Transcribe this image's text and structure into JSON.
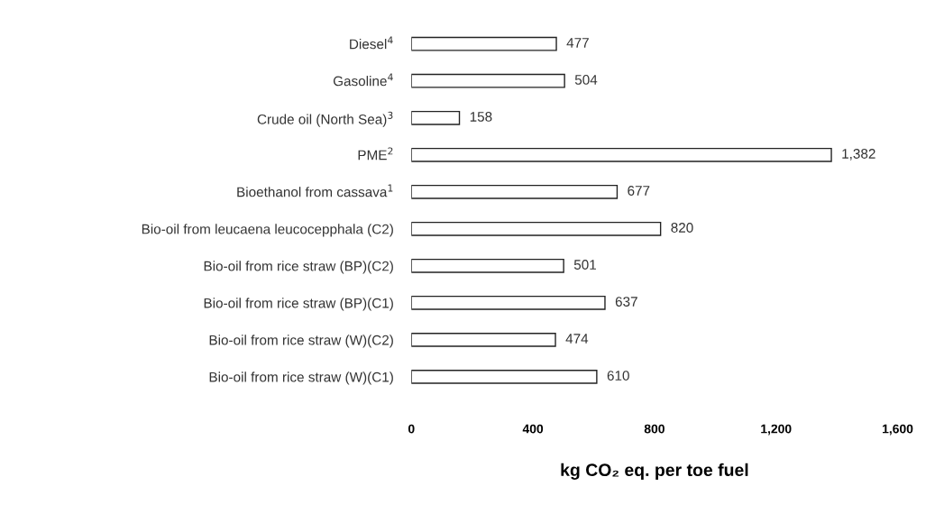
{
  "chart_data": {
    "type": "bar",
    "orientation": "horizontal",
    "categories": [
      "Diesel$^{4}$",
      "Gasoline$^{4}$",
      "Crude oil (North Sea)$^{3}$",
      "PME$^{2}$",
      "Bioethanol from cassava$^{1}$",
      "Bio-oil from leucaena leucocepphala (C2)",
      "Bio-oil from rice straw (BP)(C2)",
      "Bio-oil from rice straw (BP)(C1)",
      "Bio-oil from rice straw (W)(C2)",
      "Bio-oil from rice straw (W)(C1)"
    ],
    "values": [
      477,
      504,
      158,
      1382,
      677,
      820,
      501,
      637,
      474,
      610
    ],
    "value_labels": [
      "477",
      "504",
      "158",
      "1,382",
      "677",
      "820",
      "501",
      "637",
      "474",
      "610"
    ],
    "color": "#ffffff",
    "xlim": [
      0,
      1600
    ],
    "xticks": [
      0,
      400,
      800,
      {
        "value": 1200,
        "label": "1,200"
      },
      {
        "value": 1600,
        "label": "1,600"
      }
    ],
    "xlabel": "kg CO₂ eq. per toe fuel",
    "grid": false,
    "legend": false
  }
}
